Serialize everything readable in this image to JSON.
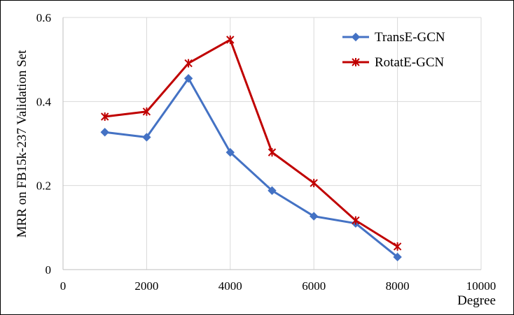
{
  "chart_data": {
    "type": "line",
    "xlabel": "Degree",
    "ylabel": "MRR on FB15k-237 Validation Set",
    "xlim": [
      0,
      10000
    ],
    "ylim": [
      0,
      0.6
    ],
    "xticks": [
      "0",
      "2000",
      "4000",
      "6000",
      "8000",
      "10000"
    ],
    "yticks": [
      "0",
      "0.2",
      "0.4",
      "0.6"
    ],
    "grid": true,
    "legend_position": "top-right",
    "series": [
      {
        "name": "TransE-GCN",
        "color": "#4472C4",
        "marker": "diamond",
        "x": [
          1000,
          2000,
          3000,
          4000,
          5000,
          6000,
          7000,
          8000
        ],
        "y": [
          0.327,
          0.315,
          0.455,
          0.279,
          0.188,
          0.127,
          0.11,
          0.03
        ]
      },
      {
        "name": "RotatE-GCN",
        "color": "#C00000",
        "marker": "star",
        "x": [
          1000,
          2000,
          3000,
          4000,
          5000,
          6000,
          7000,
          8000
        ],
        "y": [
          0.364,
          0.376,
          0.491,
          0.547,
          0.279,
          0.206,
          0.117,
          0.055
        ]
      }
    ]
  }
}
